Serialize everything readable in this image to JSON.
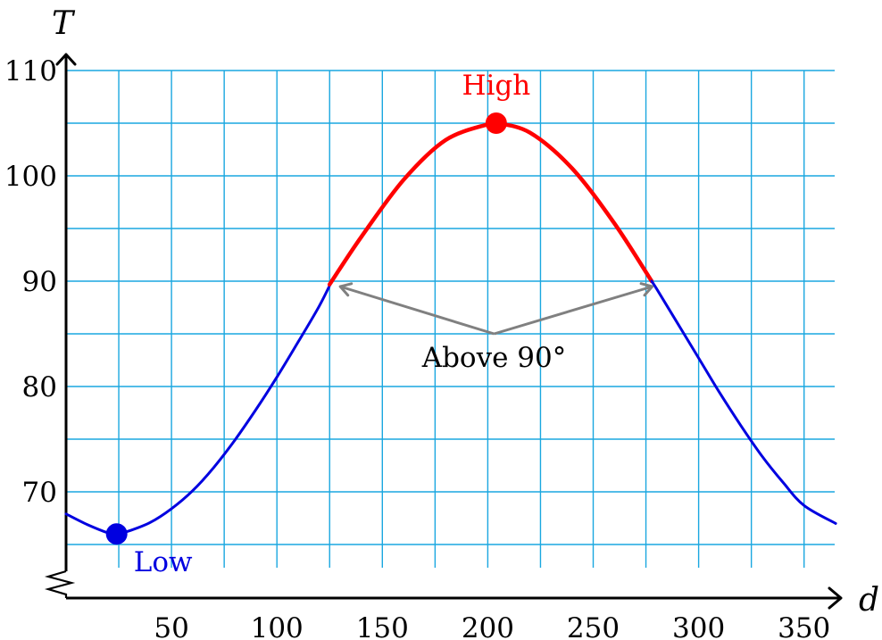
{
  "chart_data": {
    "type": "line",
    "title": "",
    "xlabel": "d",
    "ylabel": "T",
    "xlim": [
      0,
      365
    ],
    "ylim": [
      61,
      110
    ],
    "x_ticks": [
      50,
      100,
      150,
      200,
      250,
      300,
      350
    ],
    "y_ticks": [
      70,
      80,
      90,
      100,
      110
    ],
    "grid": true,
    "y_axis_break": true,
    "colors": {
      "grid": "#1aa7e0",
      "below_90": "#0000e0",
      "above_90": "#ff0000",
      "annotation": "#808080"
    },
    "series": [
      {
        "x": [
          0,
          10,
          20,
          24,
          30,
          40,
          50,
          60,
          70,
          80,
          90,
          100,
          110,
          120,
          126,
          140,
          160,
          180,
          200,
          204,
          220,
          240,
          260,
          280,
          290,
          300,
          310,
          320,
          330,
          340,
          350,
          365
        ],
        "y": [
          67.9,
          66.9,
          66.1,
          66.0,
          66.3,
          67.1,
          68.4,
          70.1,
          72.3,
          74.9,
          77.8,
          80.9,
          84.2,
          87.6,
          90.0,
          94.2,
          99.6,
          103.4,
          104.9,
          105.0,
          104.1,
          100.7,
          95.5,
          89.3,
          86.0,
          82.7,
          79.4,
          76.3,
          73.4,
          70.9,
          68.7,
          67.0
        ]
      }
    ],
    "highlight_threshold": 90,
    "points": [
      {
        "label": "High",
        "x": 204,
        "y": 105,
        "color": "#ff0000"
      },
      {
        "label": "Low",
        "x": 24,
        "y": 66,
        "color": "#0000e0"
      }
    ],
    "annotation": {
      "text": "Above 90°",
      "tail": {
        "x": 203,
        "y": 85
      },
      "targets": [
        {
          "x": 130,
          "y": 90
        },
        {
          "x": 278,
          "y": 90
        }
      ]
    }
  }
}
